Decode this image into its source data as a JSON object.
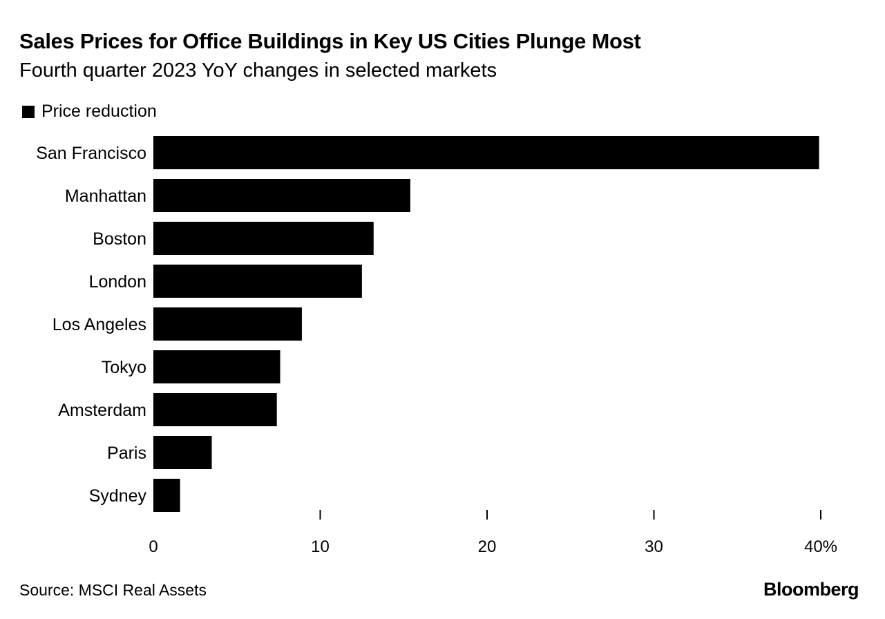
{
  "chart_data": {
    "type": "bar",
    "orientation": "horizontal",
    "title": "Sales Prices for Office Buildings in Key US Cities Plunge Most",
    "subtitle": "Fourth quarter 2023 YoY changes in selected markets",
    "categories": [
      "San Francisco",
      "Manhattan",
      "Boston",
      "London",
      "Los Angeles",
      "Tokyo",
      "Amsterdam",
      "Paris",
      "Sydney"
    ],
    "series": [
      {
        "name": "Price reduction",
        "color": "#000000",
        "values": [
          39.9,
          15.4,
          13.2,
          12.5,
          8.9,
          7.6,
          7.4,
          3.5,
          1.6
        ]
      }
    ],
    "xlim": [
      0,
      40
    ],
    "xticks": [
      0,
      10,
      20,
      30,
      40
    ],
    "xtick_labels": [
      "0",
      "10",
      "20",
      "30",
      "40%"
    ],
    "grid": false,
    "legend": "top-left",
    "source": "Source: MSCI Real Assets",
    "logo": "Bloomberg"
  }
}
